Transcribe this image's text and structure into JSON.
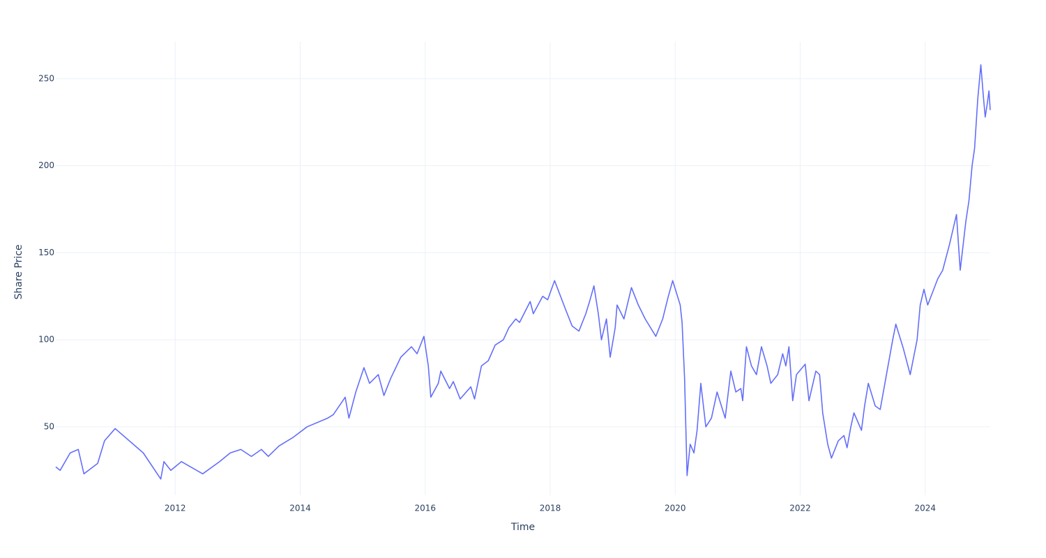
{
  "chart_data": {
    "type": "line",
    "xlabel": "Time",
    "ylabel": "Share Price",
    "color": "#636efa",
    "grid": true,
    "xlim": [
      2010.09,
      2025.04
    ],
    "xticks": [
      2012,
      2014,
      2016,
      2018,
      2020,
      2022,
      2024
    ],
    "ylim": [
      10.7,
      271.2
    ],
    "yticks": [
      50,
      100,
      150,
      200,
      250
    ],
    "x": [
      2010.09,
      2010.16,
      2010.32,
      2010.45,
      2010.54,
      2010.76,
      2010.87,
      2011.04,
      2011.49,
      2011.77,
      2011.82,
      2011.93,
      2012.1,
      2012.44,
      2012.71,
      2012.88,
      2013.05,
      2013.22,
      2013.38,
      2013.49,
      2013.66,
      2013.89,
      2014.11,
      2014.44,
      2014.53,
      2014.72,
      2014.78,
      2014.89,
      2015.02,
      2015.11,
      2015.25,
      2015.34,
      2015.45,
      2015.61,
      2015.78,
      2015.87,
      2015.98,
      2016.05,
      2016.09,
      2016.21,
      2016.25,
      2016.39,
      2016.45,
      2016.56,
      2016.73,
      2016.79,
      2016.9,
      2017.01,
      2017.12,
      2017.25,
      2017.34,
      2017.45,
      2017.51,
      2017.68,
      2017.73,
      2017.88,
      2017.96,
      2018.07,
      2018.24,
      2018.35,
      2018.46,
      2018.57,
      2018.63,
      2018.7,
      2018.77,
      2018.82,
      2018.9,
      2018.96,
      2019.04,
      2019.07,
      2019.18,
      2019.3,
      2019.41,
      2019.52,
      2019.69,
      2019.8,
      2019.89,
      2019.96,
      2020.08,
      2020.11,
      2020.15,
      2020.19,
      2020.24,
      2020.3,
      2020.35,
      2020.41,
      2020.49,
      2020.58,
      2020.67,
      2020.8,
      2020.89,
      2020.97,
      2021.05,
      2021.08,
      2021.14,
      2021.22,
      2021.3,
      2021.38,
      2021.47,
      2021.53,
      2021.64,
      2021.72,
      2021.77,
      2021.82,
      2021.88,
      2021.94,
      2022.08,
      2022.14,
      2022.25,
      2022.31,
      2022.36,
      2022.44,
      2022.5,
      2022.61,
      2022.7,
      2022.75,
      2022.81,
      2022.86,
      2022.98,
      2023.03,
      2023.09,
      2023.2,
      2023.28,
      2023.37,
      2023.48,
      2023.53,
      2023.65,
      2023.76,
      2023.87,
      2023.92,
      2023.98,
      2024.04,
      2024.2,
      2024.28,
      2024.39,
      2024.5,
      2024.56,
      2024.65,
      2024.7,
      2024.75,
      2024.79,
      2024.84,
      2024.89,
      2024.93,
      2024.96,
      2024.99,
      2025.02,
      2025.04
    ],
    "values": [
      27,
      25,
      35,
      37,
      23,
      29,
      42,
      49,
      35,
      20,
      30,
      25,
      30,
      23,
      30,
      35,
      37,
      33,
      37,
      33,
      39,
      44,
      50,
      55,
      57,
      67,
      55,
      70,
      84,
      75,
      80,
      68,
      78,
      90,
      96,
      92,
      102,
      85,
      67,
      75,
      82,
      72,
      76,
      66,
      73,
      66,
      85,
      88,
      97,
      100,
      107,
      112,
      110,
      122,
      115,
      125,
      123,
      134,
      118,
      108,
      105,
      115,
      122,
      131,
      115,
      100,
      112,
      90,
      107,
      120,
      112,
      130,
      120,
      112,
      102,
      112,
      125,
      134,
      120,
      110,
      78,
      22,
      40,
      35,
      48,
      75,
      50,
      55,
      70,
      55,
      82,
      70,
      72,
      65,
      96,
      85,
      80,
      96,
      85,
      75,
      80,
      92,
      85,
      96,
      65,
      80,
      86,
      65,
      82,
      80,
      58,
      40,
      32,
      42,
      45,
      38,
      50,
      58,
      48,
      62,
      75,
      62,
      60,
      78,
      100,
      109,
      95,
      80,
      100,
      120,
      129,
      120,
      135,
      140,
      155,
      172,
      140,
      168,
      180,
      200,
      210,
      238,
      258,
      240,
      228,
      235,
      243,
      232
    ]
  }
}
